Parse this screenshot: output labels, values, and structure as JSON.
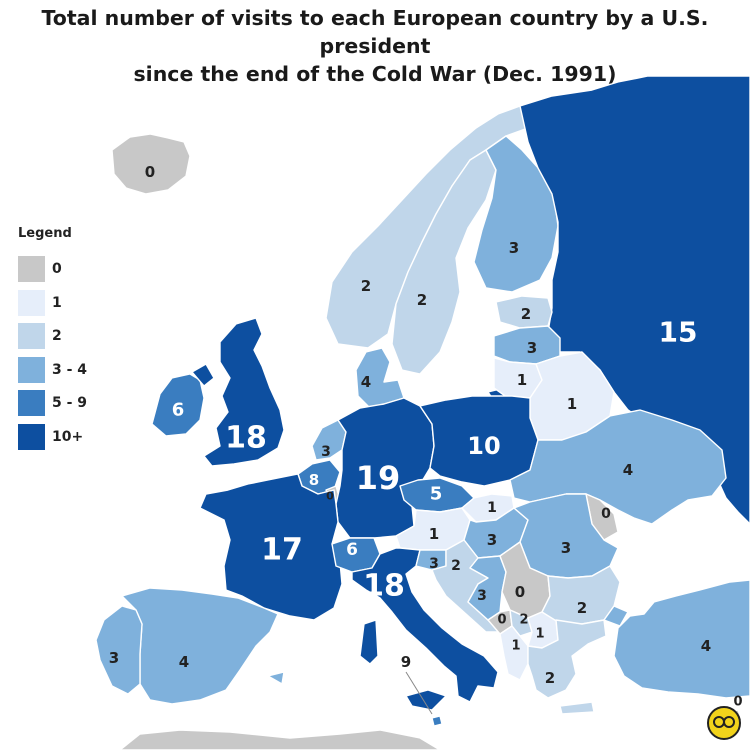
{
  "title": {
    "line1": "Total number of visits to each European country by a U.S. president",
    "line2": "since the end of the Cold War (Dec. 1991)"
  },
  "legend": {
    "title": "Legend",
    "items": [
      {
        "label": "0",
        "color": "#c8c8c8"
      },
      {
        "label": "1",
        "color": "#e6eefa"
      },
      {
        "label": "2",
        "color": "#c0d6ea"
      },
      {
        "label": "3 - 4",
        "color": "#7fb1dc"
      },
      {
        "label": "5 - 9",
        "color": "#3a7dc0"
      },
      {
        "label": "10+",
        "color": "#0d4fa0"
      }
    ]
  },
  "colors": {
    "sea": "#ffffff",
    "c0": "#c8c8c8",
    "c1": "#e6eefa",
    "c2": "#c0d6ea",
    "c3": "#7fb1dc",
    "c5": "#3a7dc0",
    "c10": "#0d4fa0",
    "border": "#ffffff"
  },
  "countries": [
    {
      "name": "Iceland",
      "visits": "0",
      "bucket": "c0"
    },
    {
      "name": "Norway",
      "visits": "2",
      "bucket": "c2"
    },
    {
      "name": "Sweden",
      "visits": "2",
      "bucket": "c2"
    },
    {
      "name": "Finland",
      "visits": "3",
      "bucket": "c3"
    },
    {
      "name": "Russia",
      "visits": "15",
      "bucket": "c10"
    },
    {
      "name": "Estonia",
      "visits": "2",
      "bucket": "c2"
    },
    {
      "name": "Latvia",
      "visits": "3",
      "bucket": "c3"
    },
    {
      "name": "Lithuania",
      "visits": "1",
      "bucket": "c1"
    },
    {
      "name": "Belarus",
      "visits": "1",
      "bucket": "c1"
    },
    {
      "name": "Denmark",
      "visits": "4",
      "bucket": "c3"
    },
    {
      "name": "Ireland",
      "visits": "6",
      "bucket": "c5"
    },
    {
      "name": "United Kingdom",
      "visits": "18",
      "bucket": "c10"
    },
    {
      "name": "Netherlands",
      "visits": "3",
      "bucket": "c3"
    },
    {
      "name": "Belgium",
      "visits": "8",
      "bucket": "c5"
    },
    {
      "name": "Luxembourg",
      "visits": "0",
      "bucket": "c0"
    },
    {
      "name": "Germany",
      "visits": "19",
      "bucket": "c10"
    },
    {
      "name": "Poland",
      "visits": "10",
      "bucket": "c10"
    },
    {
      "name": "Ukraine",
      "visits": "4",
      "bucket": "c3"
    },
    {
      "name": "Moldova",
      "visits": "0",
      "bucket": "c0"
    },
    {
      "name": "Czechia",
      "visits": "5",
      "bucket": "c5"
    },
    {
      "name": "Slovakia",
      "visits": "1",
      "bucket": "c1"
    },
    {
      "name": "Austria",
      "visits": "1",
      "bucket": "c1"
    },
    {
      "name": "Hungary",
      "visits": "3",
      "bucket": "c3"
    },
    {
      "name": "Romania",
      "visits": "3",
      "bucket": "c3"
    },
    {
      "name": "France",
      "visits": "17",
      "bucket": "c10"
    },
    {
      "name": "Switzerland",
      "visits": "6",
      "bucket": "c5"
    },
    {
      "name": "Italy",
      "visits": "18",
      "bucket": "c10"
    },
    {
      "name": "Slovenia",
      "visits": "3",
      "bucket": "c3"
    },
    {
      "name": "Croatia",
      "visits": "2",
      "bucket": "c2"
    },
    {
      "name": "Bosnia and Herzegovina",
      "visits": "3",
      "bucket": "c3"
    },
    {
      "name": "Serbia",
      "visits": "0",
      "bucket": "c0"
    },
    {
      "name": "Montenegro",
      "visits": "0",
      "bucket": "c0"
    },
    {
      "name": "Kosovo",
      "visits": "2",
      "bucket": "c2"
    },
    {
      "name": "North Macedonia",
      "visits": "1",
      "bucket": "c1"
    },
    {
      "name": "Albania",
      "visits": "1",
      "bucket": "c1"
    },
    {
      "name": "Bulgaria",
      "visits": "2",
      "bucket": "c2"
    },
    {
      "name": "Greece",
      "visits": "2",
      "bucket": "c2"
    },
    {
      "name": "Turkey",
      "visits": "4",
      "bucket": "c3"
    },
    {
      "name": "Spain",
      "visits": "4",
      "bucket": "c3"
    },
    {
      "name": "Portugal",
      "visits": "3",
      "bucket": "c3"
    },
    {
      "name": "Malta",
      "visits": "9",
      "bucket": "c5"
    },
    {
      "name": "Cyprus",
      "visits": "0",
      "bucket": "c0"
    }
  ]
}
